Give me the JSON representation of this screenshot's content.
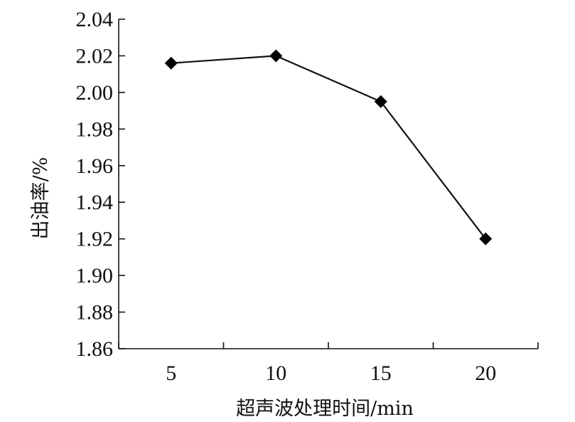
{
  "chart_data": {
    "type": "line",
    "title": "",
    "xlabel": "超声波处理时间/min",
    "ylabel": "出油率/%",
    "x": [
      5,
      10,
      15,
      20
    ],
    "xticks": [
      "5",
      "10",
      "15",
      "20"
    ],
    "xlim": [
      2.5,
      22.5
    ],
    "ylim": [
      1.86,
      2.04
    ],
    "yticks": [
      "1.86",
      "1.88",
      "1.90",
      "1.92",
      "1.94",
      "1.96",
      "1.98",
      "2.00",
      "2.02",
      "2.04"
    ],
    "grid": false,
    "legend": "none",
    "series": [
      {
        "values": [
          2.016,
          2.02,
          1.995,
          1.92
        ],
        "marker": "diamond",
        "color": "#000000"
      }
    ]
  }
}
